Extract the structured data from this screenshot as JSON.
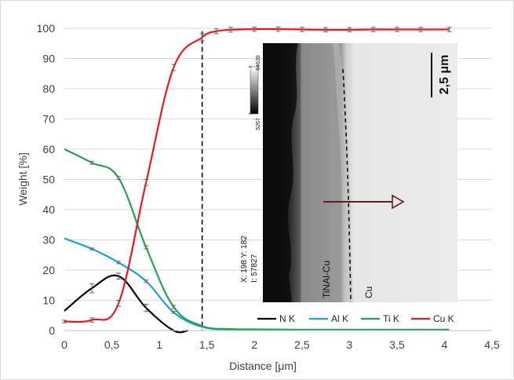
{
  "chart_data": {
    "type": "line",
    "xlabel": "Distance [μm]",
    "ylabel": "Weight [%]",
    "xlim": [
      0,
      4.5
    ],
    "ylim": [
      0,
      100
    ],
    "x_ticks": [
      0,
      0.5,
      1,
      1.5,
      2,
      2.5,
      3,
      3.5,
      4,
      4.5
    ],
    "y_ticks": [
      0,
      10,
      20,
      30,
      40,
      50,
      60,
      70,
      80,
      90,
      100
    ],
    "x_tick_labels": [
      "0",
      "0,5",
      "1",
      "1,5",
      "2",
      "2,5",
      "3",
      "3,5",
      "4",
      "4,5"
    ],
    "y_tick_labels": [
      "0",
      "10",
      "20",
      "30",
      "40",
      "50",
      "60",
      "70",
      "80",
      "90",
      "100"
    ],
    "grid": "horizontal",
    "legend_position": "bottom-right",
    "vertical_reference_line_x": 1.45,
    "series": [
      {
        "name": "N K",
        "color": "#000000",
        "points": [
          [
            0,
            6.5
          ],
          [
            0.29,
            14
          ],
          [
            0.57,
            18
          ],
          [
            0.86,
            7.5
          ],
          [
            1.15,
            0
          ],
          [
            1.3,
            0
          ]
        ],
        "errors": [
          0,
          1.5,
          1,
          1.2,
          0,
          0
        ]
      },
      {
        "name": "Al K",
        "color": "#1ba1e2",
        "points": [
          [
            0,
            30.5
          ],
          [
            0.29,
            27
          ],
          [
            0.57,
            22.5
          ],
          [
            0.86,
            16.3
          ],
          [
            1.15,
            6
          ],
          [
            1.45,
            1.2
          ],
          [
            1.75,
            0.4
          ],
          [
            2.0,
            0.3
          ],
          [
            2.5,
            0.2
          ],
          [
            3.0,
            0.2
          ],
          [
            3.5,
            0.2
          ],
          [
            4.05,
            0.2
          ]
        ],
        "errors": [
          0,
          0.3,
          0.4,
          0.4,
          0.3,
          0,
          0,
          0,
          0,
          0,
          0,
          0
        ]
      },
      {
        "name": "Ti K",
        "color": "#22a150",
        "points": [
          [
            0,
            60
          ],
          [
            0.29,
            55.5
          ],
          [
            0.57,
            50.5
          ],
          [
            0.86,
            27.5
          ],
          [
            1.15,
            7.8
          ],
          [
            1.45,
            1.5
          ],
          [
            1.75,
            0.5
          ],
          [
            2.0,
            0.4
          ],
          [
            2.5,
            0.3
          ],
          [
            3.0,
            0.3
          ],
          [
            3.5,
            0.3
          ],
          [
            4.05,
            0.3
          ]
        ],
        "errors": [
          0,
          0.5,
          0.5,
          0.5,
          0.5,
          0,
          0,
          0,
          0,
          0,
          0,
          0
        ]
      },
      {
        "name": "Cu K",
        "color": "#e8191b",
        "points": [
          [
            0,
            3
          ],
          [
            0.29,
            3.5
          ],
          [
            0.57,
            9
          ],
          [
            0.86,
            49
          ],
          [
            1.15,
            87
          ],
          [
            1.45,
            97
          ],
          [
            1.6,
            99
          ],
          [
            1.75,
            99.5
          ],
          [
            2.0,
            99.7
          ],
          [
            2.25,
            99.7
          ],
          [
            2.5,
            99.6
          ],
          [
            2.75,
            99.5
          ],
          [
            3.0,
            99.5
          ],
          [
            3.25,
            99.6
          ],
          [
            3.5,
            99.6
          ],
          [
            3.75,
            99.6
          ],
          [
            4.05,
            99.6
          ]
        ],
        "errors": [
          0.4,
          0.7,
          1,
          1,
          1,
          1.2,
          0.8,
          0.8,
          0.7,
          0.7,
          0.7,
          0.7,
          0.7,
          0.7,
          0.7,
          0.7,
          0.7
        ]
      }
    ]
  },
  "inset": {
    "colorbar_max": "64639",
    "colorbar_min": "5267",
    "scale_bar_label": "2,5 μm",
    "coordinate_readout": "X: 198 Y: 182",
    "intensity_readout": "I: 57827",
    "layer_label_left": "TiNAl-Cu",
    "layer_label_right": "Cu"
  }
}
